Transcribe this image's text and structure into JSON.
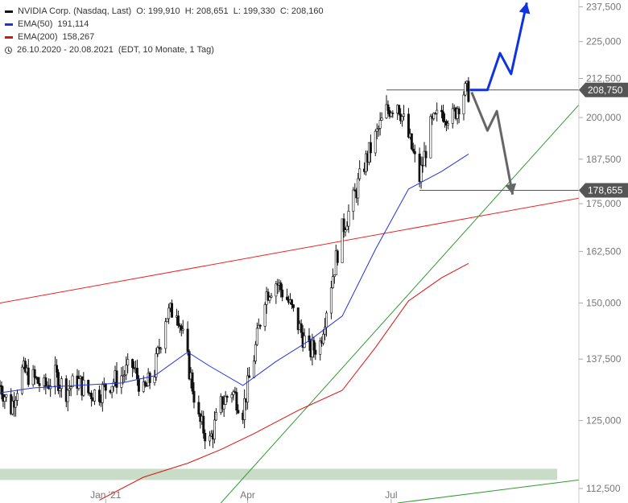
{
  "legend": {
    "title": "NVIDIA Corp. (Nasdaq, Last)",
    "ohlc": "O: 199,910  H: 208,651  L: 199,330  C: 208,160",
    "ema50_label": "EMA(50)",
    "ema50_value": "191,114",
    "ema200_label": "EMA(200)",
    "ema200_value": "158,267",
    "range": "26.10.2020 - 20.08.2021",
    "range_note": "(EDT, 10 Monate, 1 Tag)"
  },
  "colors": {
    "candle": "#111111",
    "ema50": "#2233dd",
    "ema200": "#dd1111",
    "resistance": "#ee2222",
    "trend": "#339933",
    "up_arrow": "#1133dd",
    "down_arrow": "#666666",
    "support_band": "#c8dcc8",
    "tag_bg": "#555555"
  },
  "chart_data": {
    "type": "candlestick",
    "ylim": [
      110000,
      240000
    ],
    "y_ticks": [
      {
        "value": 237500,
        "label": "237,500"
      },
      {
        "value": 225000,
        "label": "225,000"
      },
      {
        "value": 212500,
        "label": "212,500"
      },
      {
        "value": 200000,
        "label": "200,000"
      },
      {
        "value": 187500,
        "label": "187,500"
      },
      {
        "value": 175000,
        "label": "175,000"
      },
      {
        "value": 162500,
        "label": "162,500"
      },
      {
        "value": 150000,
        "label": "150,000"
      },
      {
        "value": 137500,
        "label": "137,500"
      },
      {
        "value": 125000,
        "label": "125,000"
      },
      {
        "value": 112500,
        "label": "112,500"
      }
    ],
    "x_ticks": [
      {
        "date": "2021-01-01",
        "label": "Jan '21"
      },
      {
        "date": "2021-04-01",
        "label": "Apr"
      },
      {
        "date": "2021-07-01",
        "label": "Jul"
      }
    ],
    "x_range": [
      "2020-10-26",
      "2021-10-28"
    ],
    "price_tags": [
      {
        "value": 208750,
        "label": "208,750"
      },
      {
        "value": 178655,
        "label": "178,655"
      }
    ],
    "support_zone": {
      "from": 114000,
      "to": 116000
    },
    "closes": [
      {
        "date": "2020-10-26",
        "close": 132000
      },
      {
        "date": "2020-11-02",
        "close": 127500
      },
      {
        "date": "2020-11-09",
        "close": 135000
      },
      {
        "date": "2020-11-16",
        "close": 133500
      },
      {
        "date": "2020-11-23",
        "close": 131500
      },
      {
        "date": "2020-11-30",
        "close": 134000
      },
      {
        "date": "2020-12-07",
        "close": 131000
      },
      {
        "date": "2020-12-14",
        "close": 133000
      },
      {
        "date": "2020-12-21",
        "close": 130500
      },
      {
        "date": "2020-12-28",
        "close": 130500
      },
      {
        "date": "2021-01-04",
        "close": 132500
      },
      {
        "date": "2021-01-11",
        "close": 134000
      },
      {
        "date": "2021-01-18",
        "close": 136000
      },
      {
        "date": "2021-01-25",
        "close": 130500
      },
      {
        "date": "2021-02-01",
        "close": 135000
      },
      {
        "date": "2021-02-08",
        "close": 147000
      },
      {
        "date": "2021-02-15",
        "close": 149000
      },
      {
        "date": "2021-02-22",
        "close": 137000
      },
      {
        "date": "2021-03-01",
        "close": 125000
      },
      {
        "date": "2021-03-08",
        "close": 121000
      },
      {
        "date": "2021-03-15",
        "close": 128000
      },
      {
        "date": "2021-03-22",
        "close": 131000
      },
      {
        "date": "2021-03-29",
        "close": 127000
      },
      {
        "date": "2021-04-05",
        "close": 138000
      },
      {
        "date": "2021-04-12",
        "close": 152000
      },
      {
        "date": "2021-04-19",
        "close": 155000
      },
      {
        "date": "2021-04-26",
        "close": 151000
      },
      {
        "date": "2021-05-03",
        "close": 145000
      },
      {
        "date": "2021-05-10",
        "close": 139000
      },
      {
        "date": "2021-05-17",
        "close": 141000
      },
      {
        "date": "2021-05-24",
        "close": 155000
      },
      {
        "date": "2021-05-31",
        "close": 168000
      },
      {
        "date": "2021-06-07",
        "close": 176000
      },
      {
        "date": "2021-06-14",
        "close": 186000
      },
      {
        "date": "2021-06-21",
        "close": 194000
      },
      {
        "date": "2021-06-28",
        "close": 202000
      },
      {
        "date": "2021-07-05",
        "close": 205000
      },
      {
        "date": "2021-07-12",
        "close": 194000
      },
      {
        "date": "2021-07-19",
        "close": 182000
      },
      {
        "date": "2021-07-26",
        "close": 197000
      },
      {
        "date": "2021-08-02",
        "close": 202000
      },
      {
        "date": "2021-08-09",
        "close": 200000
      },
      {
        "date": "2021-08-16",
        "close": 208160
      }
    ],
    "ema50": [
      {
        "date": "2020-10-26",
        "value": 130500
      },
      {
        "date": "2020-11-16",
        "value": 131500
      },
      {
        "date": "2020-12-14",
        "value": 132000
      },
      {
        "date": "2021-01-11",
        "value": 132500
      },
      {
        "date": "2021-02-01",
        "value": 134000
      },
      {
        "date": "2021-02-22",
        "value": 139000
      },
      {
        "date": "2021-03-08",
        "value": 136000
      },
      {
        "date": "2021-03-29",
        "value": 132000
      },
      {
        "date": "2021-04-19",
        "value": 137000
      },
      {
        "date": "2021-05-10",
        "value": 141500
      },
      {
        "date": "2021-05-31",
        "value": 147000
      },
      {
        "date": "2021-06-21",
        "value": 163000
      },
      {
        "date": "2021-07-12",
        "value": 179000
      },
      {
        "date": "2021-08-02",
        "value": 184000
      },
      {
        "date": "2021-08-19",
        "value": 189000
      }
    ],
    "ema200": [
      {
        "date": "2020-12-28",
        "value": 110500
      },
      {
        "date": "2021-01-25",
        "value": 114500
      },
      {
        "date": "2021-02-22",
        "value": 117000
      },
      {
        "date": "2021-03-15",
        "value": 119500
      },
      {
        "date": "2021-04-05",
        "value": 122500
      },
      {
        "date": "2021-05-03",
        "value": 127000
      },
      {
        "date": "2021-05-31",
        "value": 131000
      },
      {
        "date": "2021-06-21",
        "value": 140000
      },
      {
        "date": "2021-07-12",
        "value": 150500
      },
      {
        "date": "2021-08-02",
        "value": 156000
      },
      {
        "date": "2021-08-19",
        "value": 159500
      }
    ],
    "lines": [
      {
        "name": "resistance",
        "from": {
          "date": "2020-10-26",
          "value": 150000
        },
        "to": {
          "date": "2021-10-28",
          "value": 176500
        }
      },
      {
        "name": "trend",
        "from": {
          "date": "2021-03-15",
          "value": 110000
        },
        "to": {
          "date": "2021-10-28",
          "value": 204000
        }
      },
      {
        "name": "trend-lower",
        "from": {
          "date": "2021-07-05",
          "value": 110000
        },
        "to": {
          "date": "2021-10-28",
          "value": 114000
        }
      },
      {
        "name": "range-top",
        "from": {
          "date": "2021-06-28",
          "value": 208750
        },
        "to": {
          "date": "2021-10-28",
          "value": 208750
        }
      },
      {
        "name": "range-bottom",
        "from": {
          "date": "2021-07-19",
          "value": 178655
        },
        "to": {
          "date": "2021-10-28",
          "value": 178655
        }
      }
    ],
    "scenarios": {
      "up": [
        {
          "date": "2021-08-20",
          "value": 208750
        },
        {
          "date": "2021-08-31",
          "value": 208750
        },
        {
          "date": "2021-09-08",
          "value": 221000
        },
        {
          "date": "2021-09-15",
          "value": 214000
        },
        {
          "date": "2021-09-25",
          "value": 239000
        }
      ],
      "down": [
        {
          "date": "2021-08-21",
          "value": 208000
        },
        {
          "date": "2021-08-31",
          "value": 196000
        },
        {
          "date": "2021-09-06",
          "value": 202000
        },
        {
          "date": "2021-09-16",
          "value": 177500
        }
      ]
    }
  }
}
